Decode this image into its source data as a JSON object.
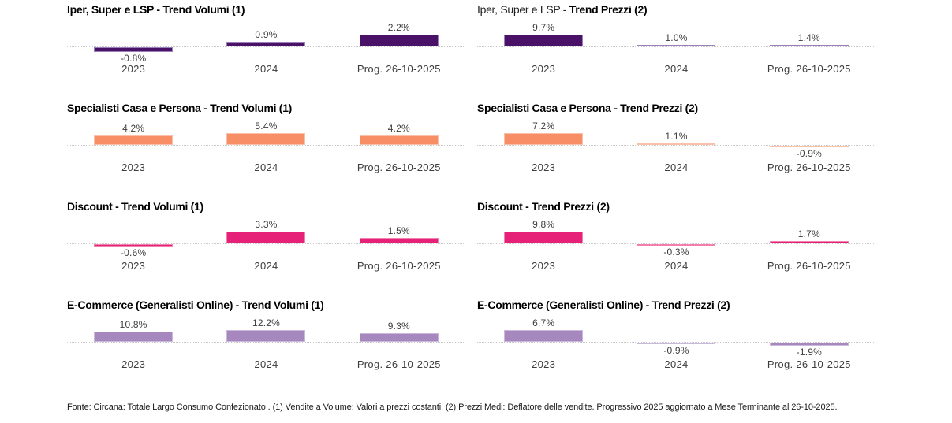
{
  "page": {
    "footer": "Fonte: Circana: Totale Largo Consumo Confezionato . (1) Vendite a Volume: Valori a prezzi costanti. (2) Prezzi Medi: Deflatore delle vendite. Progressivo 2025 aggiornato a Mese Terminante al 26-10-2025."
  },
  "layout": {
    "grid": "4 rows x 2 columns of bar charts",
    "legend": "none",
    "gridlines": "single dotted zero baseline per chart"
  },
  "chart_data": [
    {
      "id": "iper-super-lsp-trend-volumi",
      "type": "bar",
      "title": {
        "regular": "",
        "bold": "Iper, Super e LSP - Trend Volumi (1)"
      },
      "categories": [
        "2023",
        "2024",
        "Prog. 26-10-2025"
      ],
      "values": [
        -0.8,
        0.9,
        2.2
      ],
      "value_labels": [
        "-0.8%",
        "0.9%",
        "2.2%"
      ],
      "bar_color": "#4A1168",
      "bar_border_color": "#9B7FB8"
    },
    {
      "id": "iper-super-lsp-trend-prezzi",
      "type": "bar",
      "title": {
        "regular": "Iper, Super e LSP - ",
        "bold": "Trend Prezzi (2)"
      },
      "categories": [
        "2023",
        "2024",
        "Prog. 26-10-2025"
      ],
      "values": [
        9.7,
        1.0,
        1.4
      ],
      "value_labels": [
        "9.7%",
        "1.0%",
        "1.4%"
      ],
      "bar_color": "#4A1168",
      "bar_border_color": "#9B7FB8"
    },
    {
      "id": "specialisti-casa-persona-trend-volumi",
      "type": "bar",
      "title": {
        "regular": "",
        "bold": "Specialisti Casa e Persona - Trend Volumi (1)"
      },
      "categories": [
        "2023",
        "2024",
        "Prog. 26-10-2025"
      ],
      "values": [
        4.2,
        5.4,
        4.2
      ],
      "value_labels": [
        "4.2%",
        "5.4%",
        "4.2%"
      ],
      "bar_color": "#F78E66",
      "bar_border_color": "#FBC0A9"
    },
    {
      "id": "specialisti-casa-persona-trend-prezzi",
      "type": "bar",
      "title": {
        "regular": "",
        "bold": "Specialisti Casa e Persona - Trend Prezzi (2)"
      },
      "categories": [
        "2023",
        "2024",
        "Prog. 26-10-2025"
      ],
      "values": [
        7.2,
        1.1,
        -0.9
      ],
      "value_labels": [
        "7.2%",
        "1.1%",
        "-0.9%"
      ],
      "bar_color": "#F78E66",
      "bar_border_color": "#FBC0A9"
    },
    {
      "id": "discount-trend-volumi",
      "type": "bar",
      "title": {
        "regular": "",
        "bold": "Discount - Trend Volumi (1)"
      },
      "categories": [
        "2023",
        "2024",
        "Prog. 26-10-2025"
      ],
      "values": [
        -0.6,
        3.3,
        1.5
      ],
      "value_labels": [
        "-0.6%",
        "3.3%",
        "1.5%"
      ],
      "bar_color": "#E62178",
      "bar_border_color": "#F27FAE"
    },
    {
      "id": "discount-trend-prezzi",
      "type": "bar",
      "title": {
        "regular": "",
        "bold": "Discount - Trend Prezzi (2)"
      },
      "categories": [
        "2023",
        "2024",
        "Prog. 26-10-2025"
      ],
      "values": [
        9.8,
        -0.3,
        1.7
      ],
      "value_labels": [
        "9.8%",
        "-0.3%",
        "1.7%"
      ],
      "bar_color": "#E62178",
      "bar_border_color": "#F27FAE"
    },
    {
      "id": "e-commerce-generalisti-online-trend-volumi",
      "type": "bar",
      "title": {
        "regular": "",
        "bold": "E-Commerce (Generalisti Online) - Trend Volumi (1)"
      },
      "categories": [
        "2023",
        "2024",
        "Prog. 26-10-2025"
      ],
      "values": [
        10.8,
        12.2,
        9.3
      ],
      "value_labels": [
        "10.8%",
        "12.2%",
        "9.3%"
      ],
      "bar_color": "#A687BE",
      "bar_border_color": "#CBB7DB"
    },
    {
      "id": "e-commerce-generalisti-online-trend-prezzi",
      "type": "bar",
      "title": {
        "regular": "",
        "bold": "E-Commerce (Generalisti Online) - Trend Prezzi (2)"
      },
      "categories": [
        "2023",
        "2024",
        "Prog. 26-10-2025"
      ],
      "values": [
        6.7,
        -0.9,
        -1.9
      ],
      "value_labels": [
        "6.7%",
        "-0.9%",
        "-1.9%"
      ],
      "bar_color": "#A687BE",
      "bar_border_color": "#CBB7DB"
    }
  ]
}
